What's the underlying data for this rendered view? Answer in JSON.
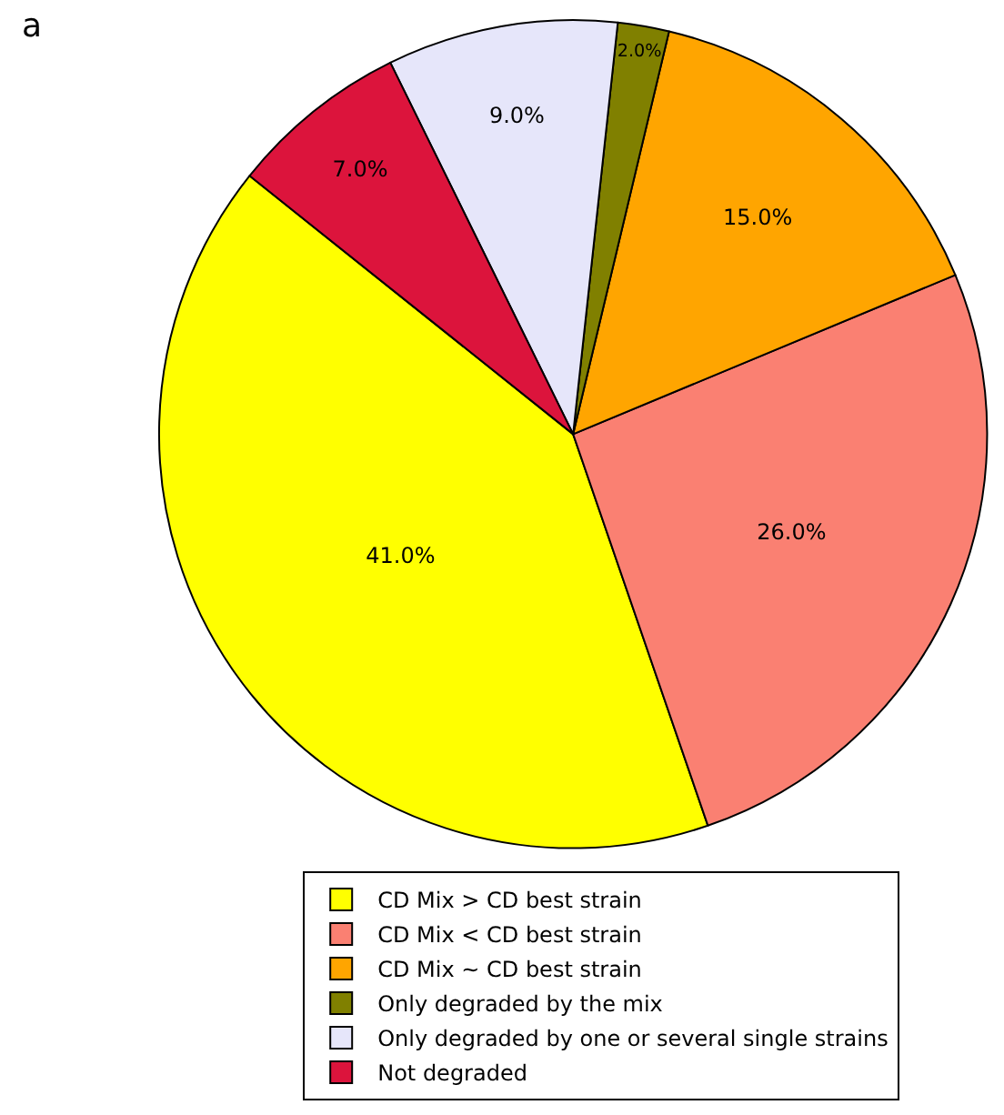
{
  "chart_data": {
    "type": "pie",
    "categories": [
      "CD Mix > CD best strain",
      "CD Mix < CD best strain",
      "CD Mix ~ CD best strain",
      "Only degraded by the mix",
      "Only degraded by one or several single strains",
      "Not degraded"
    ],
    "values": [
      41,
      26,
      15,
      2,
      9,
      7
    ],
    "value_labels": [
      "41.0%",
      "26.0%",
      "15.0%",
      "2.0%",
      "9.0%",
      "7.0%"
    ],
    "colors": [
      "#ffff00",
      "#fa8072",
      "#ffa500",
      "#808000",
      "#e6e6fa",
      "#dc143c"
    ],
    "annotations": [
      "a"
    ],
    "legend": "bottom"
  }
}
